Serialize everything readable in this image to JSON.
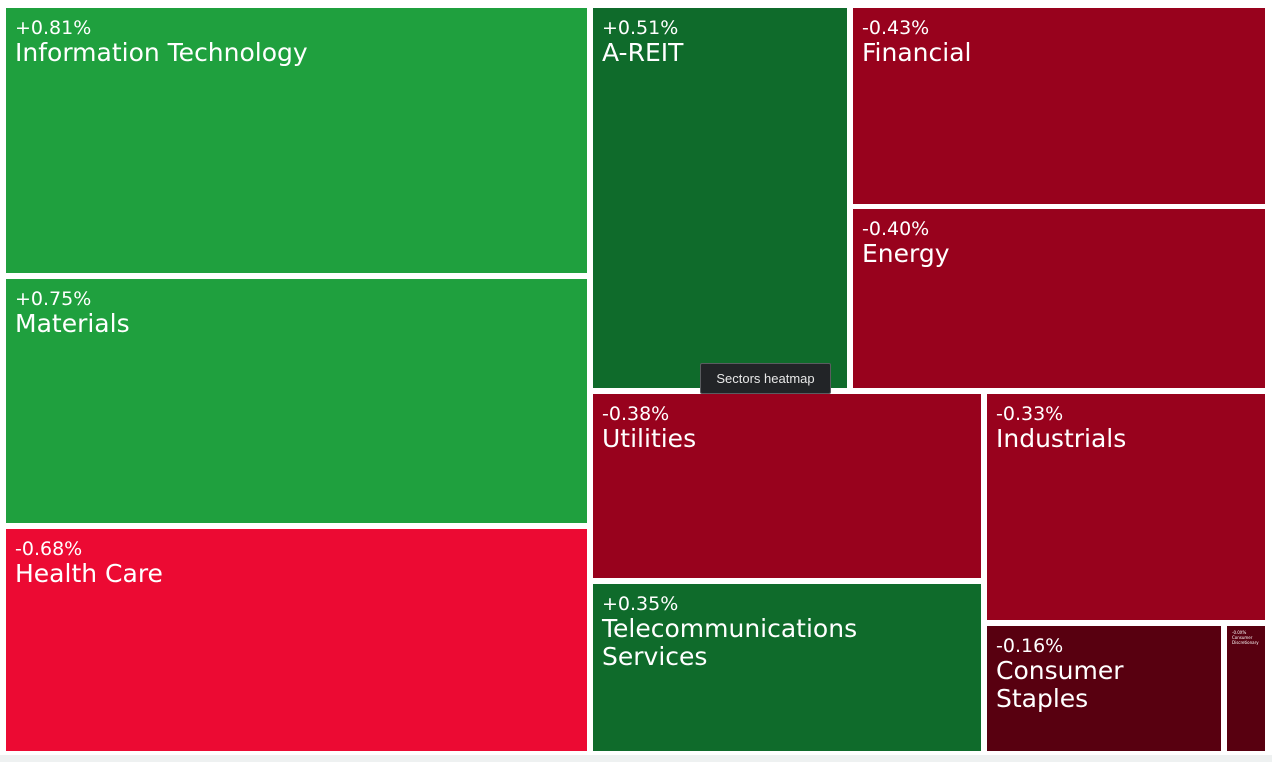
{
  "tooltip": {
    "text": "Sectors heatmap"
  },
  "chart_data": {
    "type": "heatmap",
    "subtype": "treemap",
    "value_unit": "%",
    "colors": {
      "strong_positive": "#1fa03e",
      "positive": "#0f6b2b",
      "negative": "#98021d",
      "strong_negative": "#ec0a33",
      "weak_negative": "#580010"
    },
    "tiles": [
      {
        "id": "it",
        "name": "Information Technology",
        "change": "+0.81%",
        "value": 0.81,
        "color": "#1fa03e"
      },
      {
        "id": "materials",
        "name": "Materials",
        "change": "+0.75%",
        "value": 0.75,
        "color": "#1fa03e"
      },
      {
        "id": "healthcare",
        "name": "Health Care",
        "change": "-0.68%",
        "value": -0.68,
        "color": "#ec0a33"
      },
      {
        "id": "areit",
        "name": "A-REIT",
        "change": "+0.51%",
        "value": 0.51,
        "color": "#0f6b2b"
      },
      {
        "id": "financial",
        "name": "Financial",
        "change": "-0.43%",
        "value": -0.43,
        "color": "#98021d"
      },
      {
        "id": "energy",
        "name": "Energy",
        "change": "-0.40%",
        "value": -0.4,
        "color": "#98021d"
      },
      {
        "id": "utilities",
        "name": "Utilities",
        "change": "-0.38%",
        "value": -0.38,
        "color": "#98021d"
      },
      {
        "id": "industrials",
        "name": "Industrials",
        "change": "-0.33%",
        "value": -0.33,
        "color": "#98021d"
      },
      {
        "id": "telecom",
        "name": "Telecommunications Services",
        "change": "+0.35%",
        "value": 0.35,
        "color": "#0f6b2b"
      },
      {
        "id": "staples",
        "name": "Consumer Staples",
        "change": "-0.16%",
        "value": -0.16,
        "color": "#580010"
      },
      {
        "id": "discretionary",
        "name": "Consumer Discretionary",
        "change": "-0.0X%",
        "value": null,
        "color": "#580010"
      }
    ]
  }
}
